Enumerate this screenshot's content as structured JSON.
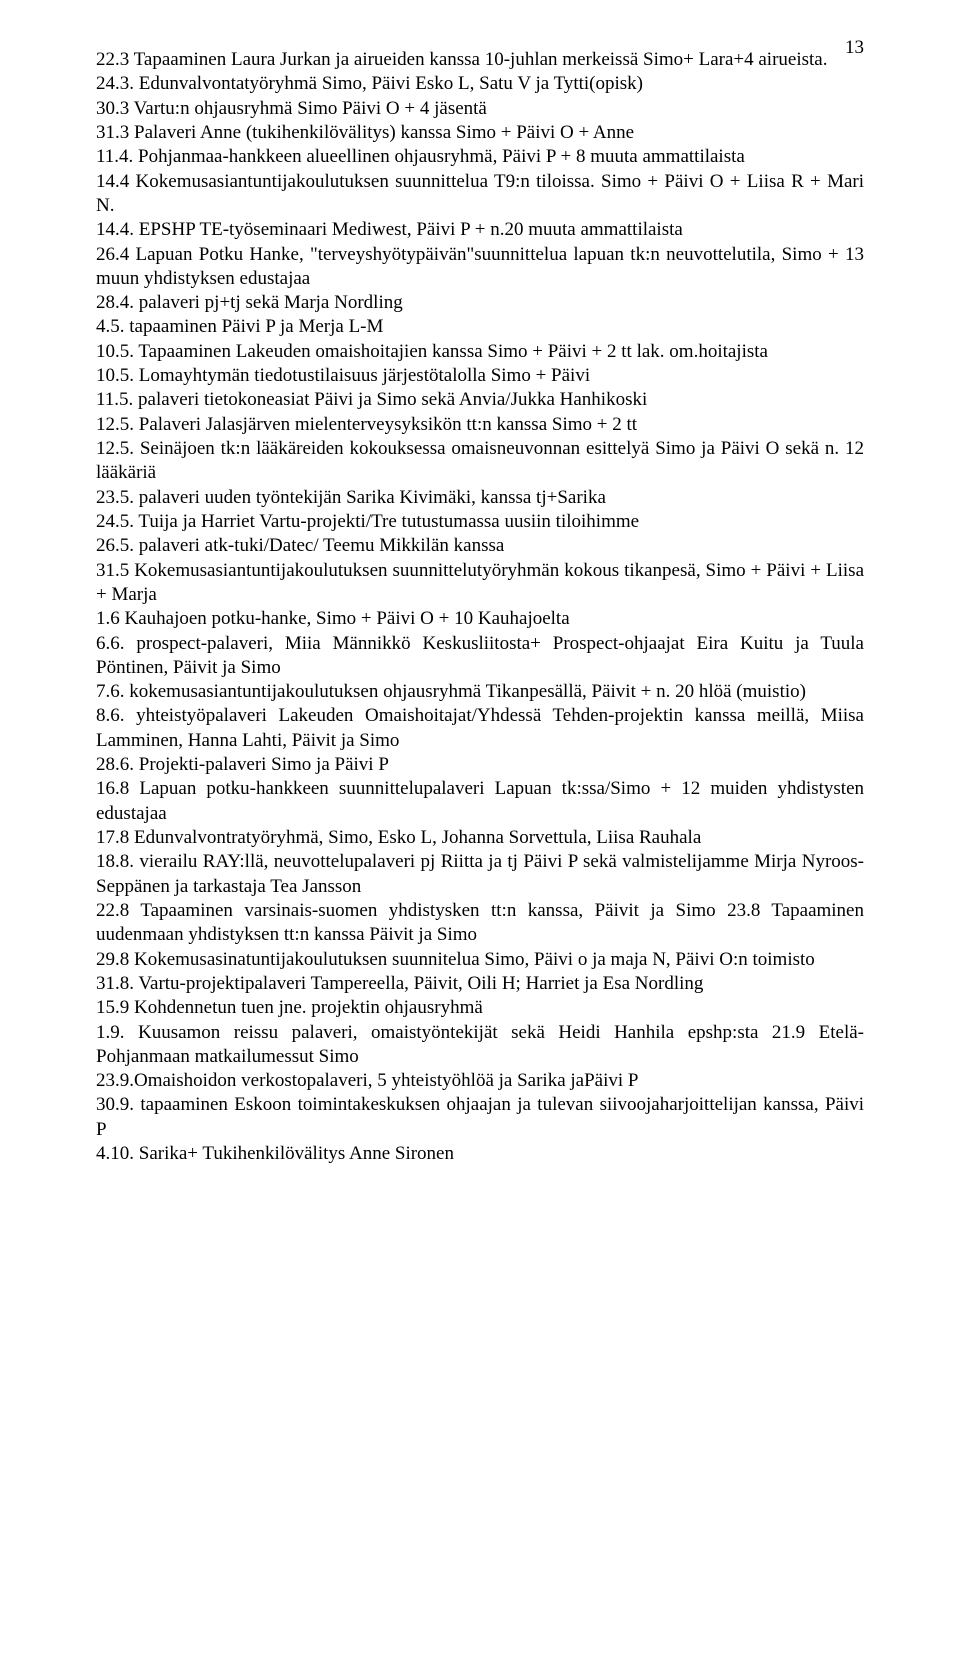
{
  "page_number": "13",
  "entries": [
    "22.3 Tapaaminen Laura Jurkan ja airueiden  kanssa 10-juhlan merkeissä Simo+ Lara+4 airueista.",
    "24.3. Edunvalvontatyöryhmä Simo, Päivi Esko L, Satu V ja Tytti(opisk)",
    "30.3 Vartu:n ohjausryhmä Simo Päivi O + 4 jäsentä",
    "31.3 Palaveri Anne (tukihenkilövälitys) kanssa Simo + Päivi O + Anne",
    "11.4. Pohjanmaa-hankkeen alueellinen ohjausryhmä, Päivi P + 8 muuta ammattilaista",
    "14.4 Kokemusasiantuntijakoulutuksen suunnittelua T9:n tiloissa. Simo + Päivi O + Liisa R + Mari N.",
    "14.4. EPSHP TE-työseminaari Mediwest, Päivi P + n.20 muuta ammattilaista",
    "26.4 Lapuan Potku Hanke, \"terveyshyötypäivän\"suunnittelua lapuan tk:n neuvottelutila, Simo + 13 muun yhdistyksen edustajaa",
    "28.4. palaveri pj+tj sekä Marja Nordling",
    "4.5. tapaaminen Päivi P ja Merja L-M",
    "10.5. Tapaaminen Lakeuden omaishoitajien kanssa Simo + Päivi + 2 tt lak. om.hoitajista",
    "10.5. Lomayhtymän tiedotustilaisuus järjestötalolla Simo + Päivi",
    "11.5. palaveri tietokoneasiat Päivi ja Simo sekä Anvia/Jukka Hanhikoski",
    "12.5. Palaveri Jalasjärven mielenterveysyksikön tt:n kanssa Simo + 2 tt",
    "12.5. Seinäjoen tk:n lääkäreiden kokouksessa omaisneuvonnan esittelyä Simo ja  Päivi O sekä  n. 12 lääkäriä",
    "23.5. palaveri uuden työntekijän Sarika Kivimäki, kanssa tj+Sarika",
    "24.5. Tuija ja Harriet Vartu-projekti/Tre tutustumassa uusiin tiloihimme",
    "26.5. palaveri atk-tuki/Datec/ Teemu Mikkilän kanssa",
    "31.5 Kokemusasiantuntijakoulutuksen suunnittelutyöryhmän kokous tikanpesä, Simo  + Päivi + Liisa + Marja",
    "1.6 Kauhajoen potku-hanke, Simo + Päivi O + 10 Kauhajoelta",
    "6.6. prospect-palaveri, Miia Männikkö Keskusliitosta+ Prospect-ohjaajat Eira Kuitu ja  Tuula Pöntinen, Päivit ja Simo",
    "7.6. kokemusasiantuntijakoulutuksen ohjausryhmä Tikanpesällä, Päivit + n. 20 hlöä (muistio)",
    "8.6. yhteistyöpalaveri Lakeuden Omaishoitajat/Yhdessä Tehden-projektin kanssa meillä, Miisa Lamminen, Hanna Lahti, Päivit ja Simo",
    "28.6. Projekti-palaveri Simo ja Päivi P",
    "16.8 Lapuan potku-hankkeen suunnittelupalaveri Lapuan tk:ssa/Simo + 12 muiden yhdistysten edustajaa",
    "17.8 Edunvalvontratyöryhmä, Simo, Esko L, Johanna Sorvettula, Liisa Rauhala",
    "18.8. vierailu RAY:llä, neuvottelupalaveri pj Riitta ja tj Päivi P sekä valmistelijamme Mirja Nyroos- Seppänen ja tarkastaja Tea Jansson",
    "22.8 Tapaaminen varsinais-suomen yhdistysken tt:n kanssa, Päivit ja Simo 23.8 Tapaaminen uudenmaan yhdistyksen tt:n kanssa Päivit ja Simo",
    "29.8 Kokemusasinatuntijakoulutuksen suunnitelua Simo, Päivi o ja maja N, Päivi O:n toimisto",
    "31.8. Vartu-projektipalaveri Tampereella, Päivit, Oili H; Harriet ja Esa Nordling",
    "15.9 Kohdennetun tuen jne. projektin ohjausryhmä",
    "1.9. Kuusamon reissu palaveri, omaistyöntekijät sekä Heidi Hanhila epshp:sta 21.9 Etelä-Pohjanmaan matkailumessut Simo",
    "23.9.Omaishoidon verkostopalaveri, 5 yhteistyöhlöä  ja Sarika jaPäivi P",
    "30.9. tapaaminen Eskoon toimintakeskuksen ohjaajan ja tulevan siivoojaharjoittelijan kanssa, Päivi P",
    "4.10. Sarika+ Tukihenkilövälitys Anne Sironen"
  ]
}
